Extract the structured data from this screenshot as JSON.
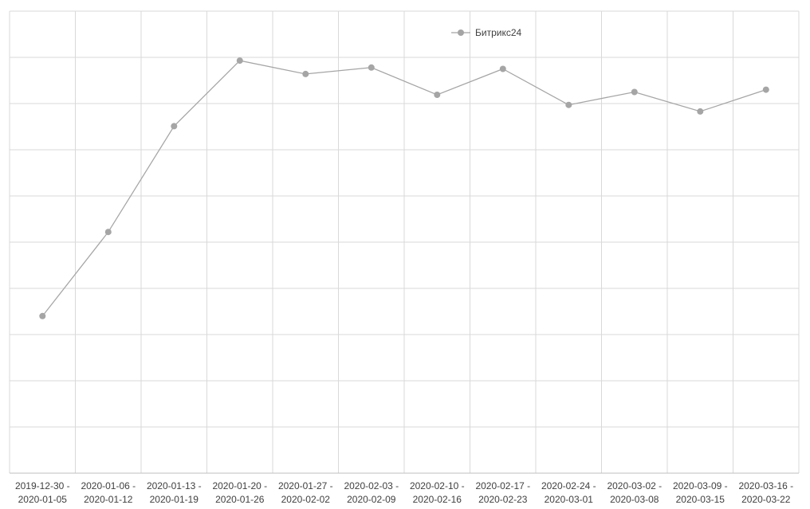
{
  "chart_data": {
    "type": "line",
    "categories": [
      [
        "2019-12-30 -",
        "2020-01-05"
      ],
      [
        "2020-01-06 -",
        "2020-01-12"
      ],
      [
        "2020-01-13 -",
        "2020-01-19"
      ],
      [
        "2020-01-20 -",
        "2020-01-26"
      ],
      [
        "2020-01-27 -",
        "2020-02-02"
      ],
      [
        "2020-02-03 -",
        "2020-02-09"
      ],
      [
        "2020-02-10 -",
        "2020-02-16"
      ],
      [
        "2020-02-17 -",
        "2020-02-23"
      ],
      [
        "2020-02-24 -",
        "2020-03-01"
      ],
      [
        "2020-03-02 -",
        "2020-03-08"
      ],
      [
        "2020-03-09 -",
        "2020-03-15"
      ],
      [
        "2020-03-16 -",
        "2020-03-22"
      ]
    ],
    "series": [
      {
        "name": "Битрикс24",
        "color": "#a5a5a5",
        "values": [
          34.0,
          52.2,
          75.1,
          89.3,
          86.4,
          87.8,
          81.9,
          87.5,
          79.7,
          82.5,
          78.3,
          83.0
        ]
      }
    ],
    "ylim": [
      0,
      100
    ],
    "y_gridlines": 10,
    "x_gridlines": true,
    "grid": true,
    "legend": "top",
    "gridline_color": "#d9d9d9",
    "axis_color": "#bfbfbf"
  }
}
